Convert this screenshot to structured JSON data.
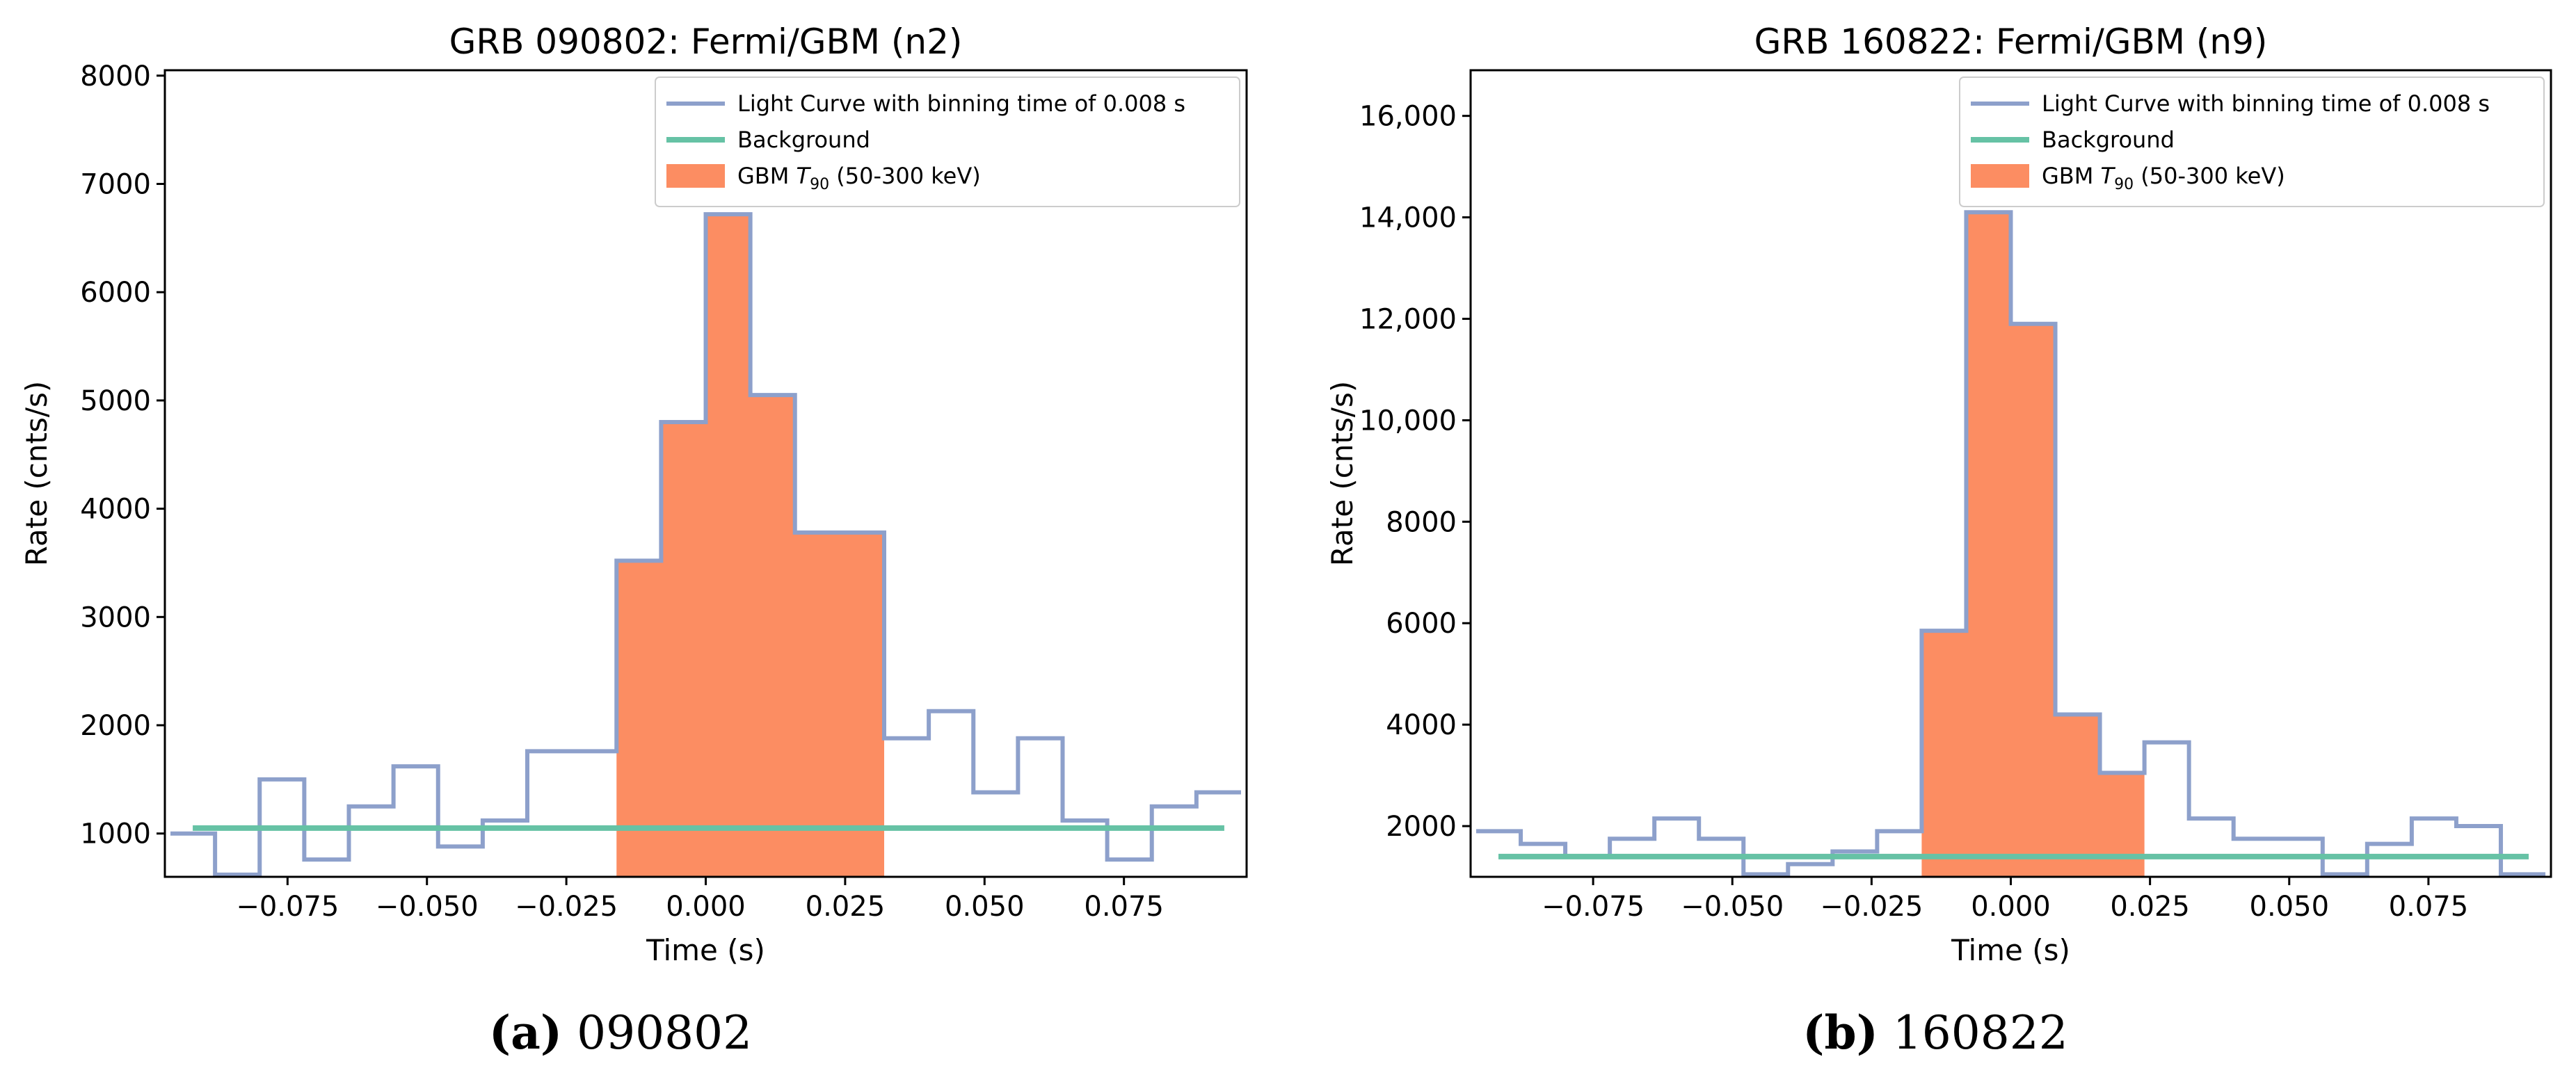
{
  "colors": {
    "light_curve": "#8da0cb",
    "background": "#66c2a5",
    "t90": "#fc8d62"
  },
  "chart_data": [
    {
      "type": "step",
      "title": "GRB 090802: Fermi/GBM (n2)",
      "xlabel": "Time (s)",
      "ylabel": "Rate (cnts/s)",
      "xlim": [
        -0.097,
        0.097
      ],
      "ylim": [
        600,
        8050
      ],
      "xticks": [
        -0.075,
        -0.05,
        -0.025,
        0.0,
        0.025,
        0.05,
        0.075
      ],
      "xtick_labels": [
        "−0.075",
        "−0.050",
        "−0.025",
        "0.000",
        "0.025",
        "0.050",
        "0.075"
      ],
      "yticks": [
        1000,
        2000,
        3000,
        4000,
        5000,
        6000,
        7000,
        8000
      ],
      "ytick_labels": [
        "1000",
        "2000",
        "3000",
        "4000",
        "5000",
        "6000",
        "7000",
        "8000"
      ],
      "bin_edges": [
        -0.096,
        -0.088,
        -0.08,
        -0.072,
        -0.064,
        -0.056,
        -0.048,
        -0.04,
        -0.032,
        -0.024,
        -0.016,
        -0.008,
        0.0,
        0.008,
        0.016,
        0.024,
        0.032,
        0.04,
        0.048,
        0.056,
        0.064,
        0.072,
        0.08,
        0.088,
        0.096
      ],
      "light_curve": [
        1000,
        620,
        1500,
        760,
        1250,
        1620,
        880,
        1120,
        1760,
        1760,
        3520,
        4800,
        6720,
        5050,
        3780,
        3780,
        1880,
        2130,
        1380,
        1880,
        1120,
        760,
        1250,
        1380
      ],
      "background": {
        "x": [
          -0.092,
          0.093
        ],
        "y": [
          1050,
          1050
        ]
      },
      "t90": {
        "start": -0.016,
        "end": 0.032
      },
      "legend": {
        "position": "top-right",
        "entries": [
          "Light Curve with binning time of 0.008 s",
          "Background",
          "GBM T90 (50-300 keV)"
        ],
        "t90_prefix": "GBM ",
        "t90_symbol": "T",
        "t90_subscript": "90",
        "t90_suffix": " (50-300 keV)"
      },
      "caption": {
        "label": "(a)",
        "text": " 090802"
      }
    },
    {
      "type": "step",
      "title": "GRB 160822: Fermi/GBM (n9)",
      "xlabel": "Time (s)",
      "ylabel": "Rate (cnts/s)",
      "xlim": [
        -0.097,
        0.097
      ],
      "ylim": [
        1000,
        16900
      ],
      "xticks": [
        -0.075,
        -0.05,
        -0.025,
        0.0,
        0.025,
        0.05,
        0.075
      ],
      "xtick_labels": [
        "−0.075",
        "−0.050",
        "−0.025",
        "0.000",
        "0.025",
        "0.050",
        "0.075"
      ],
      "yticks": [
        2000,
        4000,
        6000,
        8000,
        10000,
        12000,
        14000,
        16000
      ],
      "ytick_labels": [
        "2000",
        "4000",
        "6000",
        "8000",
        "10,000",
        "12,000",
        "14,000",
        "16,000"
      ],
      "bin_edges": [
        -0.096,
        -0.088,
        -0.08,
        -0.072,
        -0.064,
        -0.056,
        -0.048,
        -0.04,
        -0.032,
        -0.024,
        -0.016,
        -0.008,
        0.0,
        0.008,
        0.016,
        0.024,
        0.032,
        0.04,
        0.048,
        0.056,
        0.064,
        0.072,
        0.08,
        0.088,
        0.096
      ],
      "light_curve": [
        1900,
        1650,
        1400,
        1750,
        2150,
        1750,
        1050,
        1250,
        1500,
        1900,
        5850,
        14100,
        11900,
        4200,
        3050,
        3650,
        2150,
        1750,
        1750,
        1050,
        1650,
        2150,
        2000,
        1050
      ],
      "background": {
        "x": [
          -0.092,
          0.093
        ],
        "y": [
          1400,
          1400
        ]
      },
      "t90": {
        "start": -0.016,
        "end": 0.024
      },
      "legend": {
        "position": "top-right",
        "entries": [
          "Light Curve with binning time of 0.008 s",
          "Background",
          "GBM T90 (50-300 keV)"
        ],
        "t90_prefix": "GBM ",
        "t90_symbol": "T",
        "t90_subscript": "90",
        "t90_suffix": " (50-300 keV)"
      },
      "caption": {
        "label": "(b)",
        "text": " 160822"
      }
    }
  ]
}
